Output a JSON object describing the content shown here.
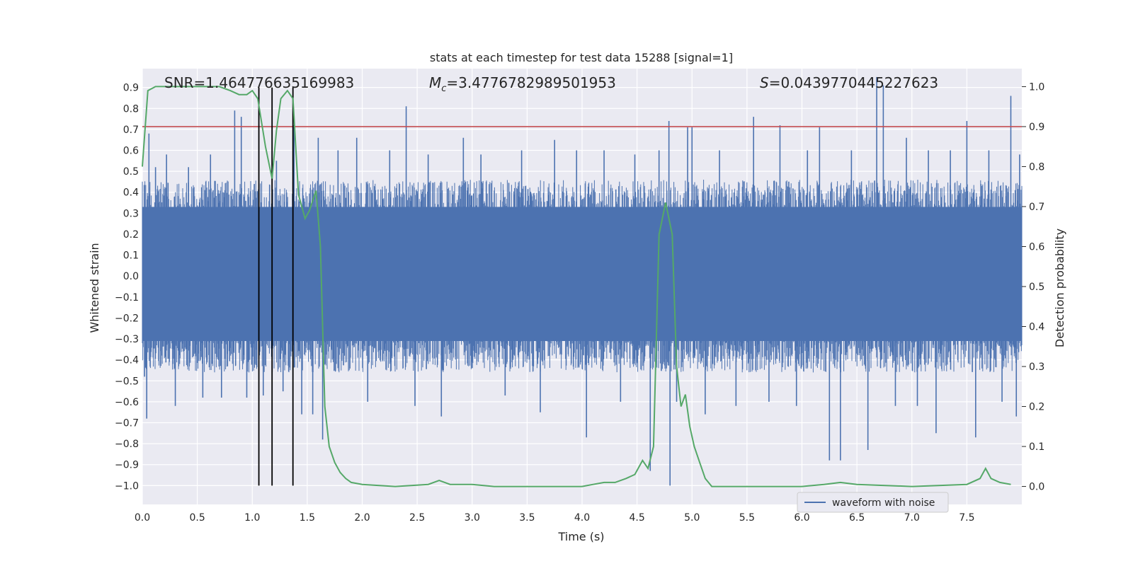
{
  "chart_data": {
    "type": "line",
    "title": "stats at each timestep for test data 15288 [signal=1]",
    "xlabel": "Time (s)",
    "ylabel_left": "Whitened strain",
    "ylabel_right": "Detection probability",
    "xlim": [
      0.0,
      8.0
    ],
    "ylim_left": [
      -1.09,
      0.99
    ],
    "ylim_right": [
      -0.045,
      1.045
    ],
    "x_ticks": [
      0.0,
      0.5,
      1.0,
      1.5,
      2.0,
      2.5,
      3.0,
      3.5,
      4.0,
      4.5,
      5.0,
      5.5,
      6.0,
      6.5,
      7.0,
      7.5
    ],
    "x_tick_labels": [
      "0.0",
      "0.5",
      "1.0",
      "1.5",
      "2.0",
      "2.5",
      "3.0",
      "3.5",
      "4.0",
      "4.5",
      "5.0",
      "5.5",
      "6.0",
      "6.5",
      "7.0",
      "7.5"
    ],
    "y_left_ticks": [
      0.9,
      0.8,
      0.7,
      0.6,
      0.5,
      0.4,
      0.3,
      0.2,
      0.1,
      0.0,
      -0.1,
      -0.2,
      -0.3,
      -0.4,
      -0.5,
      -0.6,
      -0.7,
      -0.8,
      -0.9,
      -1.0
    ],
    "y_left_tick_labels": [
      "0.9",
      "0.8",
      "0.7",
      "0.6",
      "0.5",
      "0.4",
      "0.3",
      "0.2",
      "0.1",
      "0.0",
      "−0.1",
      "−0.2",
      "−0.3",
      "−0.4",
      "−0.5",
      "−0.6",
      "−0.7",
      "−0.8",
      "−0.9",
      "−1.0"
    ],
    "y_right_ticks": [
      1.0,
      0.9,
      0.8,
      0.7,
      0.6,
      0.5,
      0.4,
      0.3,
      0.2,
      0.1,
      0.0
    ],
    "y_right_tick_labels": [
      "1.0",
      "0.9",
      "0.8",
      "0.7",
      "0.6",
      "0.5",
      "0.4",
      "0.3",
      "0.2",
      "0.1",
      "0.0"
    ],
    "annotations": {
      "snr": "SNR=1.464776635169983",
      "mc_prefix": "M",
      "mc_sub": "c",
      "mc_value": "=3.4776782989501953",
      "s_prefix": "S",
      "s_value": "=0.0439770445227623"
    },
    "legend": {
      "label": "waveform with noise",
      "placement": "lower-right"
    },
    "threshold": {
      "value": 0.9,
      "axis": "right",
      "color": "#c44e52"
    },
    "event_markers": {
      "x": [
        1.06,
        1.18,
        1.37
      ],
      "y_bottom": -1.0,
      "y_top": 0.9,
      "color": "#000000"
    },
    "waveform": {
      "name": "waveform with noise",
      "color": "#4c72b0",
      "x_range": [
        0.0,
        8.0
      ],
      "core_envelope": [
        -0.46,
        0.46
      ],
      "spikes": [
        [
          0.02,
          -0.48
        ],
        [
          0.04,
          -0.68
        ],
        [
          0.06,
          0.68
        ],
        [
          0.12,
          0.52
        ],
        [
          0.22,
          0.58
        ],
        [
          0.3,
          -0.62
        ],
        [
          0.42,
          0.52
        ],
        [
          0.55,
          -0.58
        ],
        [
          0.62,
          0.58
        ],
        [
          0.72,
          -0.58
        ],
        [
          0.84,
          0.79
        ],
        [
          0.9,
          0.76
        ],
        [
          0.95,
          -0.58
        ],
        [
          1.1,
          -0.57
        ],
        [
          1.22,
          0.55
        ],
        [
          1.28,
          -0.55
        ],
        [
          1.38,
          0.72
        ],
        [
          1.45,
          -0.66
        ],
        [
          1.55,
          -0.66
        ],
        [
          1.6,
          0.66
        ],
        [
          1.64,
          -0.78
        ],
        [
          1.78,
          0.6
        ],
        [
          1.95,
          0.66
        ],
        [
          2.05,
          -0.6
        ],
        [
          2.25,
          0.6
        ],
        [
          2.4,
          0.81
        ],
        [
          2.48,
          -0.62
        ],
        [
          2.6,
          0.58
        ],
        [
          2.72,
          -0.67
        ],
        [
          2.92,
          0.66
        ],
        [
          3.08,
          0.58
        ],
        [
          3.3,
          -0.57
        ],
        [
          3.45,
          0.6
        ],
        [
          3.62,
          -0.65
        ],
        [
          3.75,
          0.65
        ],
        [
          3.95,
          0.6
        ],
        [
          4.04,
          -0.77
        ],
        [
          4.2,
          0.6
        ],
        [
          4.35,
          -0.6
        ],
        [
          4.48,
          0.58
        ],
        [
          4.62,
          -0.93
        ],
        [
          4.7,
          0.6
        ],
        [
          4.79,
          0.74
        ],
        [
          4.8,
          -1.0
        ],
        [
          4.86,
          -0.6
        ],
        [
          4.96,
          0.71
        ],
        [
          5.0,
          0.71
        ],
        [
          5.12,
          -0.66
        ],
        [
          5.25,
          0.6
        ],
        [
          5.4,
          -0.62
        ],
        [
          5.56,
          0.76
        ],
        [
          5.7,
          -0.6
        ],
        [
          5.8,
          0.72
        ],
        [
          5.95,
          -0.62
        ],
        [
          6.05,
          0.6
        ],
        [
          6.16,
          0.71
        ],
        [
          6.25,
          -0.88
        ],
        [
          6.35,
          -0.88
        ],
        [
          6.45,
          0.6
        ],
        [
          6.6,
          -0.83
        ],
        [
          6.68,
          0.95
        ],
        [
          6.74,
          0.91
        ],
        [
          6.85,
          -0.62
        ],
        [
          6.95,
          0.66
        ],
        [
          7.05,
          -0.62
        ],
        [
          7.15,
          0.6
        ],
        [
          7.22,
          -0.75
        ],
        [
          7.35,
          0.6
        ],
        [
          7.5,
          0.74
        ],
        [
          7.58,
          -0.77
        ],
        [
          7.7,
          0.6
        ],
        [
          7.82,
          -0.6
        ],
        [
          7.9,
          0.86
        ],
        [
          7.95,
          -0.67
        ],
        [
          7.98,
          0.58
        ]
      ]
    },
    "series": [
      {
        "name": "detection probability",
        "axis": "right",
        "color": "#55a868",
        "x": [
          0.0,
          0.05,
          0.12,
          0.2,
          0.3,
          0.4,
          0.5,
          0.6,
          0.7,
          0.8,
          0.88,
          0.95,
          1.0,
          1.05,
          1.12,
          1.18,
          1.22,
          1.26,
          1.32,
          1.37,
          1.42,
          1.48,
          1.52,
          1.58,
          1.62,
          1.66,
          1.7,
          1.75,
          1.8,
          1.85,
          1.9,
          2.0,
          2.3,
          2.6,
          2.7,
          2.8,
          3.0,
          3.2,
          3.5,
          3.8,
          4.0,
          4.1,
          4.2,
          4.3,
          4.4,
          4.48,
          4.55,
          4.6,
          4.65,
          4.7,
          4.76,
          4.82,
          4.86,
          4.9,
          4.94,
          4.98,
          5.02,
          5.07,
          5.12,
          5.18,
          5.3,
          5.5,
          6.0,
          6.2,
          6.35,
          6.5,
          7.0,
          7.5,
          7.62,
          7.67,
          7.72,
          7.8,
          7.9
        ],
        "y": [
          0.8,
          0.99,
          1.0,
          1.0,
          1.0,
          1.0,
          1.0,
          1.0,
          1.0,
          0.99,
          0.98,
          0.98,
          0.99,
          0.97,
          0.85,
          0.77,
          0.89,
          0.97,
          0.99,
          0.97,
          0.73,
          0.67,
          0.69,
          0.74,
          0.6,
          0.2,
          0.1,
          0.06,
          0.035,
          0.02,
          0.01,
          0.005,
          0.0,
          0.005,
          0.015,
          0.005,
          0.005,
          0.0,
          0.0,
          0.0,
          0.0,
          0.005,
          0.01,
          0.01,
          0.02,
          0.03,
          0.065,
          0.045,
          0.1,
          0.63,
          0.71,
          0.63,
          0.3,
          0.2,
          0.23,
          0.15,
          0.1,
          0.06,
          0.02,
          0.0,
          0.0,
          0.0,
          0.0,
          0.005,
          0.01,
          0.005,
          0.0,
          0.005,
          0.02,
          0.045,
          0.02,
          0.01,
          0.005
        ]
      }
    ]
  }
}
